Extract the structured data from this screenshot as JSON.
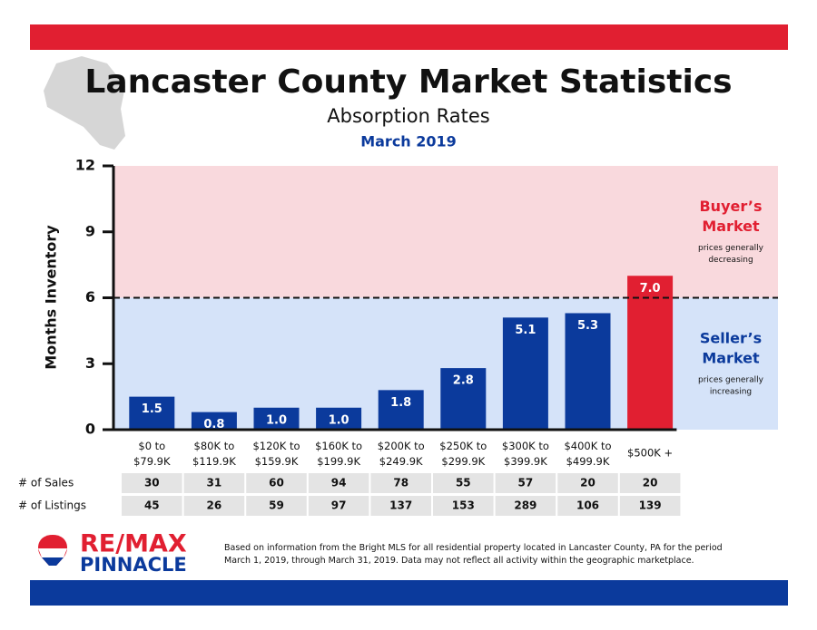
{
  "chart_data": {
    "type": "bar",
    "title": "Lancaster County Market Statistics",
    "subtitle": "Absorption Rates",
    "date": "March 2019",
    "y_label": "Months Inventory",
    "categories": [
      "$0 to\n$79.9K",
      "$80K to\n$119.9K",
      "$120K to\n$159.9K",
      "$160K to\n$199.9K",
      "$200K to\n$249.9K",
      "$250K to\n$299.9K",
      "$300K to\n$399.9K",
      "$400K to\n$499.9K",
      "$500K +"
    ],
    "values": [
      1.5,
      0.8,
      1.0,
      1.0,
      1.8,
      2.8,
      5.1,
      5.3,
      7.0
    ],
    "value_labels": [
      "1.5",
      "0.8",
      "1.0",
      "1.0",
      "1.8",
      "2.8",
      "5.1",
      "5.3",
      "7.0"
    ],
    "colors": [
      "#0b3a9c",
      "#0b3a9c",
      "#0b3a9c",
      "#0b3a9c",
      "#0b3a9c",
      "#0b3a9c",
      "#0b3a9c",
      "#0b3a9c",
      "#e11f31"
    ],
    "ylim": [
      0,
      12
    ],
    "yticks": [
      0,
      3,
      6,
      9,
      12
    ],
    "threshold": 6,
    "regions": [
      {
        "label": "Buyer’s\nMarket",
        "note": "prices generally\ndecreasing",
        "range": [
          6,
          12
        ],
        "color": "#f9d9dd",
        "label_color": "#e11f31"
      },
      {
        "label": "Seller’s\nMarket",
        "note": "prices generally\nincreasing",
        "range": [
          0,
          6
        ],
        "color": "#d5e3f9",
        "label_color": "#0b3a9c"
      }
    ],
    "table": [
      {
        "label": "# of Sales",
        "values": [
          30,
          31,
          60,
          94,
          78,
          55,
          57,
          20,
          20
        ]
      },
      {
        "label": "# of Listings",
        "values": [
          45,
          26,
          59,
          97,
          137,
          153,
          289,
          106,
          139
        ]
      }
    ]
  },
  "logo": {
    "line1": "RE/MAX",
    "line2": "PINNACLE"
  },
  "footnote": "Based on information from the Bright MLS for all residential property located in Lancaster County, PA for the period\nMarch 1, 2019, through March 31, 2019.  Data may not reflect all activity within the geographic marketplace."
}
